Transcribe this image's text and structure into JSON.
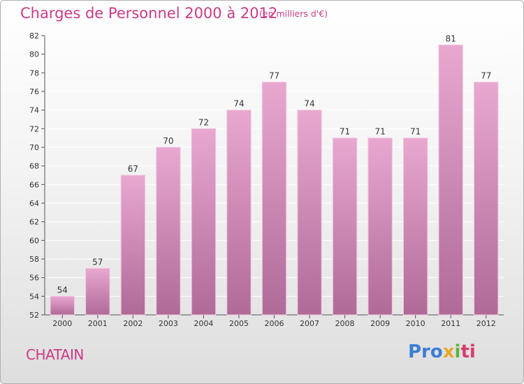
{
  "header": {
    "title": "Charges de Personnel 2000 à 2012",
    "subtitle": "(en milliers d'€)"
  },
  "footer": {
    "commune": "CHATAIN",
    "logo": [
      "Pro",
      "x",
      "i",
      "ti"
    ]
  },
  "colors": {
    "title": "#cc3a86",
    "bar_top": "#e8a8d0",
    "bar_bottom": "#b06a98",
    "gridline": "#ffffff"
  },
  "chart_data": {
    "type": "bar",
    "categories": [
      "2000",
      "2001",
      "2002",
      "2003",
      "2004",
      "2005",
      "2006",
      "2007",
      "2008",
      "2009",
      "2010",
      "2011",
      "2012"
    ],
    "values": [
      54,
      57,
      67,
      70,
      72,
      74,
      77,
      74,
      71,
      71,
      71,
      81,
      77
    ],
    "ylim": [
      52,
      82
    ],
    "yticks": [
      52,
      54,
      56,
      58,
      60,
      62,
      64,
      66,
      68,
      70,
      72,
      74,
      76,
      78,
      80,
      82
    ],
    "grid": true
  }
}
